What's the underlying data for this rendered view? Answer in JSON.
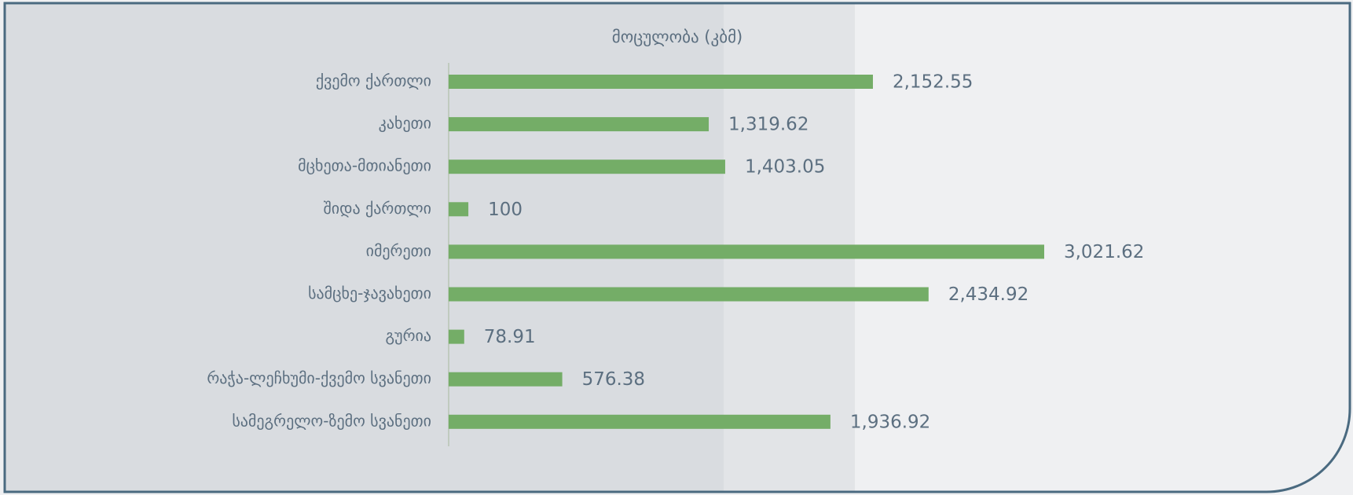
{
  "chart_data": {
    "type": "bar",
    "orientation": "horizontal",
    "title": "მოცულობა (კბმ)",
    "categories": [
      "ქვემო ქართლი",
      "კახეთი",
      "მცხეთა-მთიანეთი",
      "შიდა ქართლი",
      "იმერეთი",
      "სამცხე-ჯავახეთი",
      "გურია",
      "რაჭა-ლეჩხუმი-ქვემო სვანეთი",
      "სამეგრელო-ზემო სვანეთი"
    ],
    "values": [
      2152.55,
      1319.62,
      1403.05,
      100,
      3021.62,
      2434.92,
      78.91,
      576.38,
      1936.92
    ],
    "value_labels": [
      "2,152.55",
      "1,319.62",
      "1,403.05",
      "100",
      "3,021.62",
      "2,434.92",
      "78.91",
      "576.38",
      "1,936.92"
    ],
    "color": "#74ad67",
    "xlim": [
      0,
      3500
    ]
  }
}
